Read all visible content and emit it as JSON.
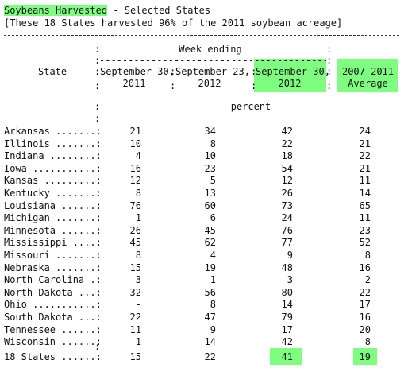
{
  "title": {
    "highlighted": "Soybeans Harvested",
    "rest": " - Selected States",
    "note": "[These 18 States harvested 96% of the 2011 soybean acreage]"
  },
  "header": {
    "state_col": "State",
    "week_ending": "Week ending",
    "col1_line1": "September 30,",
    "col1_line2": "2011",
    "col2_line1": "September 23,",
    "col2_line2": "2012",
    "col3_line1": "September 30,",
    "col3_line2": "2012",
    "col4_line1": "2007-2011",
    "col4_line2": "Average",
    "unit": "percent"
  },
  "rows": [
    {
      "state": "Arkansas .......:",
      "v1": "21",
      "v2": "34",
      "v3": "42",
      "v4": "24"
    },
    {
      "state": "Illinois .......:",
      "v1": "10",
      "v2": "8",
      "v3": "22",
      "v4": "21"
    },
    {
      "state": "Indiana ........:",
      "v1": "4",
      "v2": "10",
      "v3": "18",
      "v4": "22"
    },
    {
      "state": "Iowa ...........:",
      "v1": "16",
      "v2": "23",
      "v3": "54",
      "v4": "21"
    },
    {
      "state": "Kansas .........:",
      "v1": "12",
      "v2": "5",
      "v3": "12",
      "v4": "11"
    },
    {
      "state": "Kentucky .......:",
      "v1": "8",
      "v2": "13",
      "v3": "26",
      "v4": "14"
    },
    {
      "state": "Louisiana ......:",
      "v1": "76",
      "v2": "60",
      "v3": "73",
      "v4": "65"
    },
    {
      "state": "Michigan .......:",
      "v1": "1",
      "v2": "6",
      "v3": "24",
      "v4": "11"
    },
    {
      "state": "Minnesota ......:",
      "v1": "26",
      "v2": "45",
      "v3": "76",
      "v4": "23"
    },
    {
      "state": "Mississippi ....:",
      "v1": "45",
      "v2": "62",
      "v3": "77",
      "v4": "52"
    },
    {
      "state": "Missouri .......:",
      "v1": "8",
      "v2": "4",
      "v3": "9",
      "v4": "8"
    },
    {
      "state": "Nebraska .......:",
      "v1": "15",
      "v2": "19",
      "v3": "48",
      "v4": "16"
    },
    {
      "state": "North Carolina .:",
      "v1": "3",
      "v2": "1",
      "v3": "3",
      "v4": "2"
    },
    {
      "state": "North Dakota ...:",
      "v1": "32",
      "v2": "56",
      "v3": "80",
      "v4": "22"
    },
    {
      "state": "Ohio ...........:",
      "v1": "-",
      "v2": "8",
      "v3": "14",
      "v4": "17"
    },
    {
      "state": "South Dakota ...:",
      "v1": "22",
      "v2": "47",
      "v3": "79",
      "v4": "16"
    },
    {
      "state": "Tennessee ......:",
      "v1": "11",
      "v2": "9",
      "v3": "17",
      "v4": "20"
    },
    {
      "state": "Wisconsin ......:",
      "v1": "1",
      "v2": "14",
      "v3": "42",
      "v4": "8"
    }
  ],
  "total": {
    "state": "18 States ......:",
    "v1": "15",
    "v2": "22",
    "v3": "41",
    "v4": "19"
  },
  "colors": {
    "highlight": "#7fff7f"
  }
}
